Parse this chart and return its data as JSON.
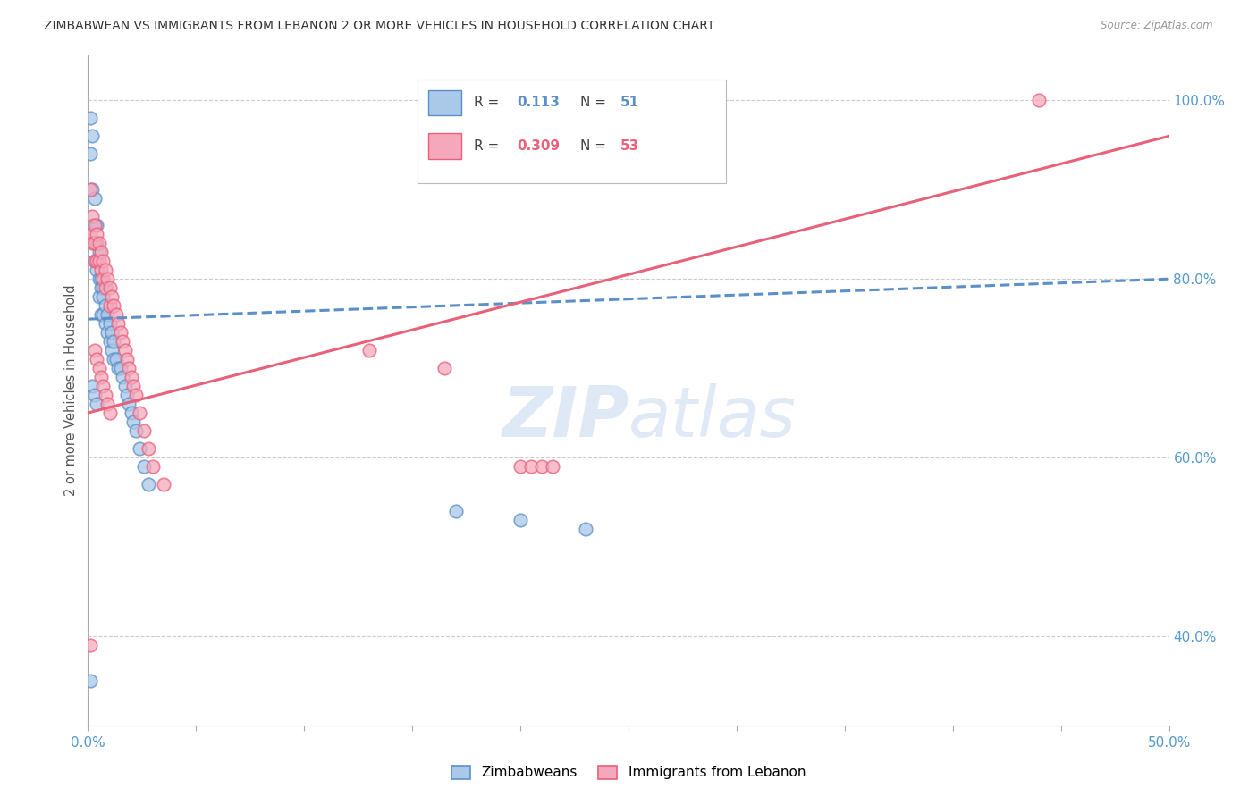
{
  "title": "ZIMBABWEAN VS IMMIGRANTS FROM LEBANON 2 OR MORE VEHICLES IN HOUSEHOLD CORRELATION CHART",
  "source": "Source: ZipAtlas.com",
  "ylabel": "2 or more Vehicles in Household",
  "xlim": [
    0.0,
    0.5
  ],
  "ylim": [
    0.3,
    1.05
  ],
  "xtick_positions": [
    0.0,
    0.05,
    0.1,
    0.15,
    0.2,
    0.25,
    0.3,
    0.35,
    0.4,
    0.45,
    0.5
  ],
  "yticks_right": [
    0.4,
    0.6,
    0.8,
    1.0
  ],
  "ytick_right_labels": [
    "40.0%",
    "60.0%",
    "80.0%",
    "100.0%"
  ],
  "blue_color": "#aac8e8",
  "pink_color": "#f5a8bc",
  "blue_line_color": "#5b8fc9",
  "pink_line_color": "#e8607a",
  "blue_r": 0.113,
  "pink_r": 0.309,
  "blue_n": 51,
  "pink_n": 53,
  "watermark_zip_color": "#c5d8f0",
  "watermark_atlas_color": "#b0c8e8",
  "grid_color": "#cccccc",
  "blue_scatter_x": [
    0.001,
    0.001,
    0.002,
    0.002,
    0.002,
    0.003,
    0.003,
    0.003,
    0.003,
    0.004,
    0.004,
    0.004,
    0.005,
    0.005,
    0.005,
    0.006,
    0.006,
    0.006,
    0.007,
    0.007,
    0.007,
    0.008,
    0.008,
    0.009,
    0.009,
    0.01,
    0.01,
    0.011,
    0.011,
    0.012,
    0.012,
    0.013,
    0.014,
    0.015,
    0.016,
    0.017,
    0.018,
    0.019,
    0.02,
    0.021,
    0.022,
    0.024,
    0.026,
    0.028,
    0.002,
    0.003,
    0.004,
    0.17,
    0.2,
    0.23,
    0.001
  ],
  "blue_scatter_y": [
    0.98,
    0.94,
    0.96,
    0.9,
    0.86,
    0.89,
    0.86,
    0.84,
    0.82,
    0.86,
    0.84,
    0.81,
    0.83,
    0.8,
    0.78,
    0.8,
    0.79,
    0.76,
    0.79,
    0.78,
    0.76,
    0.77,
    0.75,
    0.76,
    0.74,
    0.75,
    0.73,
    0.74,
    0.72,
    0.73,
    0.71,
    0.71,
    0.7,
    0.7,
    0.69,
    0.68,
    0.67,
    0.66,
    0.65,
    0.64,
    0.63,
    0.61,
    0.59,
    0.57,
    0.68,
    0.67,
    0.66,
    0.54,
    0.53,
    0.52,
    0.35
  ],
  "pink_scatter_x": [
    0.001,
    0.001,
    0.002,
    0.002,
    0.003,
    0.003,
    0.003,
    0.004,
    0.004,
    0.005,
    0.005,
    0.006,
    0.006,
    0.007,
    0.007,
    0.008,
    0.008,
    0.009,
    0.01,
    0.01,
    0.011,
    0.012,
    0.013,
    0.014,
    0.015,
    0.016,
    0.017,
    0.018,
    0.019,
    0.02,
    0.021,
    0.022,
    0.024,
    0.026,
    0.028,
    0.03,
    0.035,
    0.003,
    0.004,
    0.005,
    0.006,
    0.007,
    0.008,
    0.009,
    0.01,
    0.13,
    0.165,
    0.2,
    0.205,
    0.21,
    0.215,
    0.44,
    0.001
  ],
  "pink_scatter_y": [
    0.9,
    0.85,
    0.87,
    0.84,
    0.86,
    0.84,
    0.82,
    0.85,
    0.82,
    0.84,
    0.82,
    0.83,
    0.81,
    0.82,
    0.8,
    0.81,
    0.79,
    0.8,
    0.79,
    0.77,
    0.78,
    0.77,
    0.76,
    0.75,
    0.74,
    0.73,
    0.72,
    0.71,
    0.7,
    0.69,
    0.68,
    0.67,
    0.65,
    0.63,
    0.61,
    0.59,
    0.57,
    0.72,
    0.71,
    0.7,
    0.69,
    0.68,
    0.67,
    0.66,
    0.65,
    0.72,
    0.7,
    0.59,
    0.59,
    0.59,
    0.59,
    1.0,
    0.39
  ]
}
